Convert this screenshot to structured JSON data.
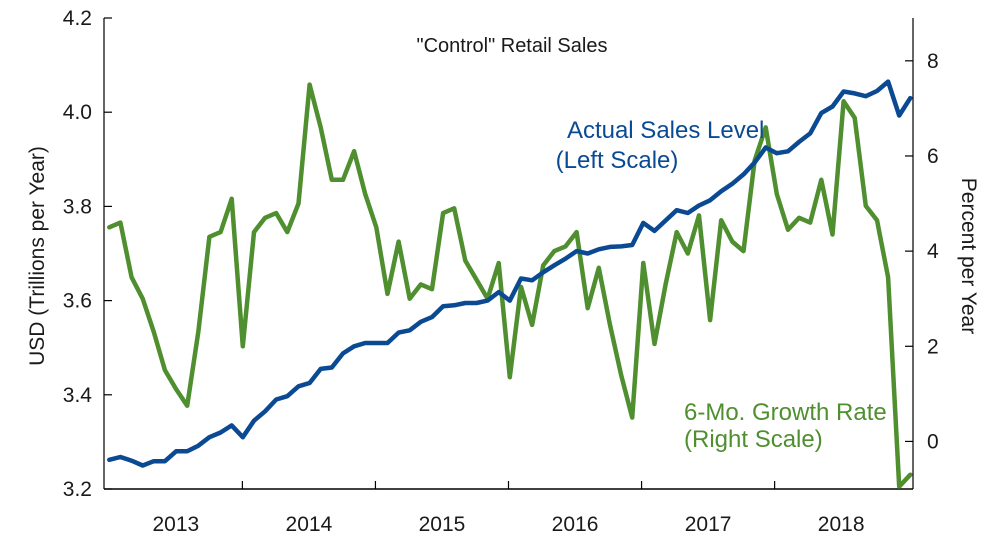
{
  "chart_data": {
    "type": "line",
    "title": "\"Control\" Retail Sales",
    "ylabel_left": "USD (Trillions per Year)",
    "ylabel_right": "Percent per Year",
    "left_ylim": [
      3.2,
      4.2
    ],
    "right_ylim": [
      -1,
      8.9
    ],
    "left_ticks": [
      "3.2",
      "3.4",
      "3.6",
      "3.8",
      "4.0",
      "4.2"
    ],
    "left_tick_values": [
      3.2,
      3.4,
      3.6,
      3.8,
      4.0,
      4.2
    ],
    "right_ticks": [
      "0",
      "2",
      "4",
      "6",
      "8"
    ],
    "right_tick_values": [
      0,
      2,
      4,
      6,
      8
    ],
    "x_start": 2012.96,
    "x_end": 2019.04,
    "year_labels": [
      "2013",
      "2014",
      "2015",
      "2016",
      "2017",
      "2018"
    ],
    "year_centers": [
      2013.5,
      2014.5,
      2015.5,
      2016.5,
      2017.5,
      2018.5
    ],
    "year_boundaries": [
      2014,
      2015,
      2016,
      2017,
      2018
    ],
    "colors": {
      "sales": "#0b4a93",
      "growth": "#4f8f2f",
      "axis": "#000000"
    },
    "series": [
      {
        "name": "Actual Sales Level",
        "axis": "left",
        "label_lines": [
          "Actual Sales Level",
          "(Left Scale)"
        ],
        "values": [
          3.262,
          3.268,
          3.26,
          3.25,
          3.259,
          3.259,
          3.28,
          3.28,
          3.292,
          3.31,
          3.32,
          3.335,
          3.31,
          3.345,
          3.365,
          3.39,
          3.397,
          3.418,
          3.425,
          3.455,
          3.458,
          3.488,
          3.503,
          3.51,
          3.51,
          3.51,
          3.532,
          3.537,
          3.555,
          3.565,
          3.588,
          3.59,
          3.595,
          3.595,
          3.6,
          3.618,
          3.6,
          3.647,
          3.643,
          3.66,
          3.675,
          3.689,
          3.705,
          3.7,
          3.709,
          3.714,
          3.715,
          3.718,
          3.765,
          3.748,
          3.77,
          3.792,
          3.786,
          3.802,
          3.813,
          3.832,
          3.848,
          3.868,
          3.893,
          3.925,
          3.913,
          3.917,
          3.937,
          3.955,
          3.998,
          4.012,
          4.044,
          4.04,
          4.034,
          4.045,
          4.065,
          3.993,
          4.03
        ]
      },
      {
        "name": "6-Mo. Growth Rate",
        "axis": "right",
        "label_lines": [
          "6-Mo. Growth Rate",
          "(Right Scale)"
        ],
        "values": [
          4.5,
          4.6,
          3.45,
          3.0,
          2.3,
          1.5,
          1.1,
          0.75,
          2.3,
          4.3,
          4.4,
          5.1,
          2.0,
          4.4,
          4.7,
          4.8,
          4.4,
          5.0,
          7.5,
          6.6,
          5.5,
          5.5,
          6.1,
          5.2,
          4.5,
          3.1,
          4.2,
          3.0,
          3.3,
          3.2,
          4.8,
          4.9,
          3.8,
          3.4,
          3.0,
          3.75,
          1.35,
          3.25,
          2.45,
          3.7,
          4.0,
          4.1,
          4.4,
          2.8,
          3.65,
          2.45,
          1.4,
          0.5,
          3.75,
          2.05,
          3.3,
          4.4,
          3.95,
          4.75,
          2.55,
          4.65,
          4.2,
          4.0,
          5.9,
          6.6,
          5.2,
          4.45,
          4.7,
          4.6,
          5.5,
          4.35,
          7.15,
          6.8,
          4.95,
          4.65,
          3.45,
          -0.95,
          -0.7
        ]
      }
    ]
  }
}
